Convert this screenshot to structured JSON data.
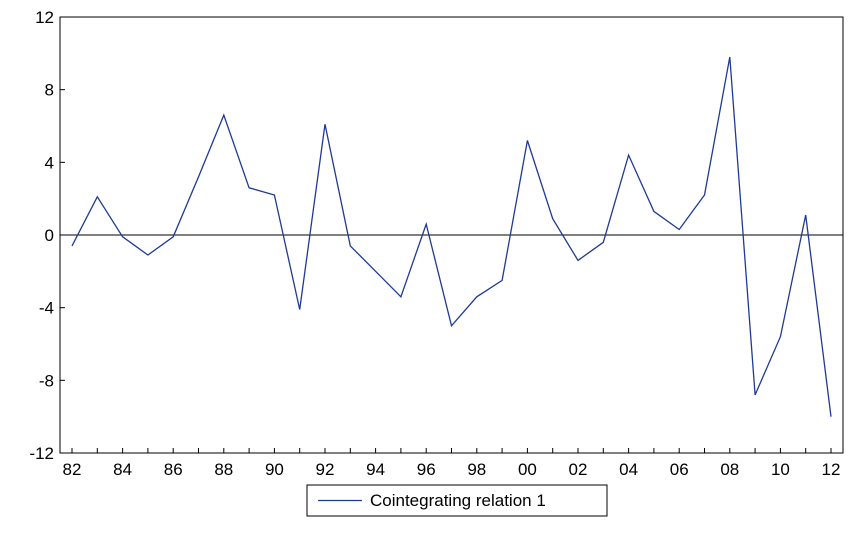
{
  "chart_data": {
    "type": "line",
    "title": "",
    "xlabel": "",
    "ylabel": "",
    "ylim": [
      -12,
      12
    ],
    "yticks": [
      "12",
      "8",
      "4",
      "0",
      "-4",
      "-8",
      "-12"
    ],
    "ytick_values": [
      12,
      8,
      4,
      0,
      -4,
      -8,
      -12
    ],
    "xticks": [
      "82",
      "84",
      "86",
      "88",
      "90",
      "92",
      "94",
      "96",
      "98",
      "00",
      "02",
      "04",
      "06",
      "08",
      "10",
      "12"
    ],
    "xtick_years": [
      1982,
      1984,
      1986,
      1988,
      1990,
      1992,
      1994,
      1996,
      1998,
      2000,
      2002,
      2004,
      2006,
      2008,
      2010,
      2012
    ],
    "x": [
      1982,
      1983,
      1984,
      1985,
      1986,
      1987,
      1988,
      1989,
      1990,
      1991,
      1992,
      1993,
      1994,
      1995,
      1996,
      1997,
      1998,
      1999,
      2000,
      2001,
      2002,
      2003,
      2004,
      2005,
      2006,
      2007,
      2008,
      2009,
      2010,
      2011,
      2012
    ],
    "series": [
      {
        "name": "Cointegrating relation 1",
        "color": "#1f3a93",
        "values": [
          -0.6,
          2.1,
          -0.1,
          -1.1,
          -0.1,
          3.2,
          6.6,
          2.6,
          2.2,
          -4.1,
          6.1,
          -0.6,
          -2.0,
          -3.4,
          0.6,
          -5.0,
          -3.4,
          -2.5,
          5.2,
          0.9,
          -1.4,
          -0.4,
          4.4,
          1.3,
          0.3,
          2.2,
          9.8,
          -8.8,
          -5.6,
          1.1,
          -10.0
        ]
      }
    ],
    "zero_line": true,
    "grid": false,
    "legend_position": "bottom-center"
  }
}
